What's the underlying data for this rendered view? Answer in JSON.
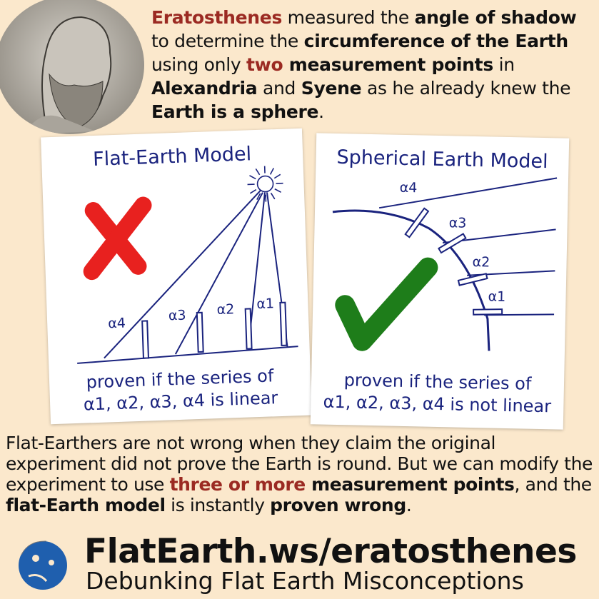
{
  "header": {
    "segments": [
      {
        "text": "Eratosthenes",
        "style": "bold-red"
      },
      {
        "text": " measured the ",
        "style": "normal"
      },
      {
        "text": "angle of shadow",
        "style": "bold"
      },
      {
        "text": " to determine the ",
        "style": "normal"
      },
      {
        "text": "circumference of the Earth",
        "style": "bold"
      },
      {
        "text": " using only ",
        "style": "normal"
      },
      {
        "text": "two",
        "style": "bold-red"
      },
      {
        "text": " measurement points",
        "style": "bold"
      },
      {
        "text": " in ",
        "style": "normal"
      },
      {
        "text": "Alexandria",
        "style": "bold"
      },
      {
        "text": " and ",
        "style": "normal"
      },
      {
        "text": "Syene",
        "style": "bold"
      },
      {
        "text": " as he already knew the ",
        "style": "normal"
      },
      {
        "text": "Earth is a sphere",
        "style": "bold"
      },
      {
        "text": ".",
        "style": "normal"
      }
    ]
  },
  "flat_card": {
    "title": "Flat-Earth Model",
    "labels": [
      "α4",
      "α3",
      "α2",
      "α1"
    ],
    "footer_line1": "proven if the series of",
    "footer_line2": "α1, α2, α3, α4 is linear",
    "mark": "cross-icon",
    "mark_color": "#e8211f"
  },
  "sphere_card": {
    "title": "Spherical Earth Model",
    "labels": [
      "α4",
      "α3",
      "α2",
      "α1"
    ],
    "footer_line1": "proven if the series of",
    "footer_line2": "α1, α2, α3, α4 is not linear",
    "mark": "checkmark-icon",
    "mark_color": "#1e7d1a"
  },
  "body": {
    "segments": [
      {
        "text": "Flat-Earthers are not wrong when they claim the original experiment did not prove the Earth is round. But we can modify the experiment to use ",
        "style": "normal"
      },
      {
        "text": "three or more",
        "style": "bold-red"
      },
      {
        "text": " measurement points",
        "style": "bold"
      },
      {
        "text": ", and the ",
        "style": "normal"
      },
      {
        "text": "flat-Earth model",
        "style": "bold"
      },
      {
        "text": " is instantly ",
        "style": "normal"
      },
      {
        "text": "proven wrong",
        "style": "bold"
      },
      {
        "text": ".",
        "style": "normal"
      }
    ]
  },
  "footer": {
    "site": "FlatEarth.ws/eratosthenes",
    "tagline": "Debunking Flat Earth Misconceptions",
    "logo": "globe-icon",
    "logo_color": "#1f5fae"
  },
  "colors": {
    "background": "#fbe8cc",
    "accent_red": "#9b2a22",
    "diagram_ink": "#1a237e"
  }
}
